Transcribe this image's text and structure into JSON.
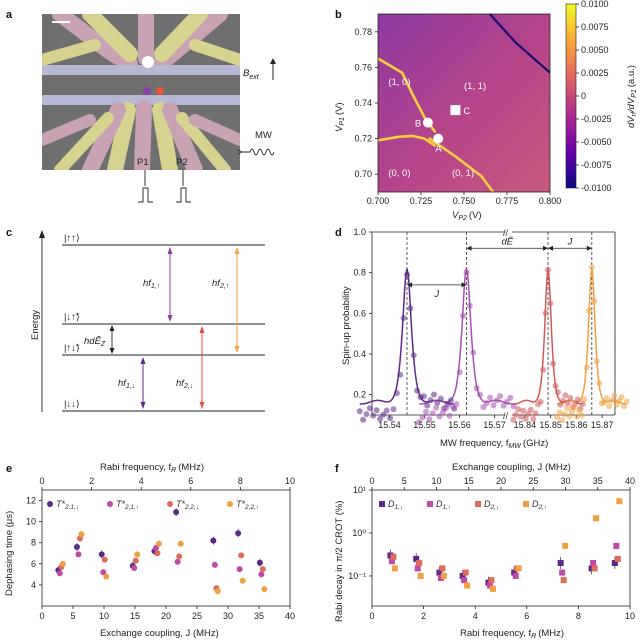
{
  "panel_labels": {
    "a": "a",
    "b": "b",
    "c": "c",
    "d": "d",
    "e": "e",
    "f": "f"
  },
  "panel_a": {
    "gate_labels": [
      "P1",
      "P2"
    ],
    "field_label": "B",
    "field_sub": "ext",
    "mw_label": "MW"
  },
  "chart_data": [
    {
      "panel": "b",
      "type": "heatmap",
      "title": "",
      "xlabel": "V",
      "xlabel_sub": "P2",
      "xunit": "(V)",
      "ylabel": "V",
      "ylabel_sub": "P1",
      "yunit": "(V)",
      "xlim": [
        0.7,
        0.8
      ],
      "ylim": [
        0.69,
        0.79
      ],
      "x_ticks": [
        "0.700",
        "0.725",
        "0.750",
        "0.775",
        "0.800"
      ],
      "y_ticks": [
        "0.70",
        "0.72",
        "0.74",
        "0.76",
        "0.78"
      ],
      "colorbar_label": "dV",
      "colorbar_label_rest": "/dV",
      "colorbar_unit": "(a.u.)",
      "colorbar_range": [
        -0.01,
        0.01
      ],
      "colorbar_ticks": [
        "0.0100",
        "0.0075",
        "0.0050",
        "0.0025",
        "0",
        "-0.0025",
        "-0.0050",
        "-0.0075",
        "-0.0100"
      ],
      "colormap": [
        "#0d0887",
        "#6a00a8",
        "#b12a90",
        "#e16462",
        "#fca636",
        "#f0f921"
      ],
      "transition_lines": [
        {
          "kind": "bright",
          "points": [
            [
              0.7,
              0.765
            ],
            [
              0.714,
              0.757
            ],
            [
              0.72,
              0.745
            ],
            [
              0.727,
              0.732
            ],
            [
              0.733,
              0.724
            ]
          ]
        },
        {
          "kind": "bright",
          "points": [
            [
              0.7,
              0.719
            ],
            [
              0.712,
              0.721
            ],
            [
              0.72,
              0.7215
            ],
            [
              0.727,
              0.72
            ],
            [
              0.733,
              0.716
            ]
          ]
        },
        {
          "kind": "bright",
          "points": [
            [
              0.73,
              0.72
            ],
            [
              0.745,
              0.71
            ],
            [
              0.76,
              0.699
            ],
            [
              0.767,
              0.69
            ]
          ]
        },
        {
          "kind": "dark",
          "points": [
            [
              0.765,
              0.79
            ],
            [
              0.78,
              0.774
            ],
            [
              0.8,
              0.757
            ]
          ]
        }
      ],
      "regions": [
        {
          "label": "(1, 0)",
          "x": 0.706,
          "y": 0.75
        },
        {
          "label": "(1, 1)",
          "x": 0.75,
          "y": 0.748
        },
        {
          "label": "(0, 0)",
          "x": 0.706,
          "y": 0.699
        },
        {
          "label": "(0, 1)",
          "x": 0.743,
          "y": 0.699
        }
      ],
      "markers": [
        {
          "label": "A",
          "x": 0.735,
          "y": 0.72,
          "shape": "circle"
        },
        {
          "label": "B",
          "x": 0.729,
          "y": 0.729,
          "shape": "circle"
        },
        {
          "label": "C",
          "x": 0.745,
          "y": 0.736,
          "shape": "square"
        }
      ]
    },
    {
      "panel": "c",
      "type": "diagram",
      "title": "",
      "ylabel": "Energy",
      "levels": [
        {
          "label": "|↑↑⟩",
          "y_level": 4
        },
        {
          "label": "|↓↑̃⟩",
          "y_level": 2.9
        },
        {
          "label": "|↑↓̃⟩",
          "y_level": 2.3
        },
        {
          "label": "|↓↓⟩",
          "y_level": 0
        }
      ],
      "transitions": [
        {
          "label": "hf",
          "sub": "1,↑",
          "color": "#8a3fa0",
          "from": 2.9,
          "to": 4
        },
        {
          "label": "hf",
          "sub": "2,↑",
          "color": "#f0a040",
          "from": 2.3,
          "to": 4
        },
        {
          "label": "hf",
          "sub": "1,↓",
          "color": "#5a2a8a",
          "from": 0,
          "to": 2.3
        },
        {
          "label": "hf",
          "sub": "2,↓",
          "color": "#e05040",
          "from": 0,
          "to": 2.9
        }
      ],
      "splitting_label": "hdẼ",
      "splitting_sub": "Z"
    },
    {
      "panel": "d",
      "type": "line",
      "title": "",
      "xlabel": "MW frequency, f",
      "xlabel_sub": "MW",
      "xunit": "(GHz)",
      "ylabel": "Spin-up probability",
      "ylim": [
        0.1,
        1.0
      ],
      "y_ticks": [
        "0.2",
        "0.4",
        "0.6",
        "0.8",
        "1.0"
      ],
      "x_ticks_left": [
        "15.54",
        "15.55",
        "15.56",
        "15.57"
      ],
      "x_ticks_right": [
        "15.84",
        "15.85",
        "15.86",
        "15.87"
      ],
      "xlim_left": [
        15.535,
        15.573
      ],
      "xlim_right": [
        15.835,
        15.875
      ],
      "axis_break": "//",
      "annotations": [
        "J",
        "dẼ",
        "J"
      ],
      "dashed_at": [
        15.545,
        15.562,
        15.849,
        15.866
      ],
      "series": [
        {
          "name": "",
          "color": "#5a2a8a",
          "center": 15.545,
          "fwhm": 0.0045,
          "peak": 0.8
        },
        {
          "name": "",
          "color": "#a64fb0",
          "center": 15.562,
          "fwhm": 0.0045,
          "peak": 0.8
        },
        {
          "name": "",
          "color": "#d05a5a",
          "center": 15.849,
          "fwhm": 0.0045,
          "peak": 0.8
        },
        {
          "name": "",
          "color": "#f0a040",
          "center": 15.866,
          "fwhm": 0.0045,
          "peak": 0.8
        }
      ],
      "baseline": 0.16
    },
    {
      "panel": "e",
      "type": "scatter",
      "title": "",
      "xlabel": "Exchange coupling, J (MHz)",
      "x2label": "Rabi frequency, f",
      "x2label_sub": "R",
      "x2unit": "(MHz)",
      "ylabel": "Dephasing time (μs)",
      "xlim": [
        0,
        40
      ],
      "x2lim": [
        0,
        10
      ],
      "ylim": [
        2,
        13
      ],
      "x_ticks": [
        "0",
        "5",
        "10",
        "15",
        "20",
        "25",
        "30",
        "35",
        "40"
      ],
      "x2_ticks": [
        "0",
        "2",
        "4",
        "6",
        "8",
        "10"
      ],
      "y_ticks": [
        "4",
        "6",
        "8",
        "10",
        "12"
      ],
      "legend_position": "top-left",
      "series": [
        {
          "name": "T*",
          "sub": "2,1,↓",
          "color": "#5a2a8a",
          "x": [
            3,
            6,
            10,
            15,
            18.5,
            22,
            28,
            32,
            35.5
          ],
          "y": [
            5.4,
            7.6,
            6.9,
            5.8,
            7.2,
            10.9,
            8.2,
            8.9,
            6.1
          ]
        },
        {
          "name": "T*",
          "sub": "2,1,↑",
          "color": "#c048a8",
          "x": [
            3,
            6,
            10,
            15,
            18.5,
            22,
            28,
            32,
            35.5
          ],
          "y": [
            5.1,
            6.9,
            5.2,
            5.6,
            7.5,
            6.2,
            5.9,
            5.5,
            5.0
          ]
        },
        {
          "name": "T*",
          "sub": "2,2,↓",
          "color": "#e06a5a",
          "x": [
            3,
            6,
            10,
            15,
            18.5,
            22,
            28,
            32,
            35.5
          ],
          "y": [
            5.7,
            8.4,
            6.4,
            6.3,
            7.0,
            6.7,
            3.7,
            6.8,
            5.5
          ]
        },
        {
          "name": "T*",
          "sub": "2,2,↑",
          "color": "#f0a040",
          "x": [
            3,
            6,
            10,
            15,
            18.5,
            22,
            28,
            32,
            35.5
          ],
          "y": [
            6.0,
            8.8,
            4.8,
            6.9,
            7.9,
            7.9,
            3.4,
            4.4,
            3.6
          ]
        }
      ]
    },
    {
      "panel": "f",
      "type": "scatter",
      "title": "",
      "xlabel": "Rabi frequency, f",
      "xlabel_sub": "R",
      "xunit": "(MHz)",
      "x2label": "Exchange coupling, J (MHz)",
      "ylabel": "Rabi decay in π/2 CROT (%)",
      "ylog": true,
      "ylim": [
        0.02,
        10
      ],
      "xlim": [
        0,
        10
      ],
      "x2lim": [
        0,
        40
      ],
      "x_ticks": [
        "0",
        "2",
        "4",
        "6",
        "8",
        "10"
      ],
      "x2_ticks": [
        "0",
        "5",
        "10",
        "15",
        "20",
        "25",
        "30",
        "35",
        "40"
      ],
      "y_ticks": [
        "10⁻¹",
        "10⁰",
        "10¹"
      ],
      "legend_position": "top",
      "series": [
        {
          "name": "D",
          "sub": "1,↓",
          "color": "#5a2a8a",
          "x": [
            0.8,
            1.8,
            2.7,
            3.6,
            4.6,
            5.6,
            7.4,
            8.6,
            9.5
          ],
          "y": [
            0.3,
            0.25,
            0.12,
            0.1,
            0.07,
            0.12,
            0.2,
            0.15,
            0.2
          ]
        },
        {
          "name": "D",
          "sub": "1,↑",
          "color": "#c048a8",
          "x": [
            0.8,
            1.8,
            2.7,
            3.6,
            4.6,
            5.6,
            7.4,
            8.6,
            9.5
          ],
          "y": [
            0.22,
            0.15,
            0.09,
            0.08,
            0.06,
            0.1,
            0.12,
            0.2,
            0.5
          ]
        },
        {
          "name": "D",
          "sub": "2,↓",
          "color": "#e06a5a",
          "x": [
            0.8,
            1.8,
            2.7,
            3.6,
            4.6,
            5.6,
            7.4,
            8.6,
            9.5
          ],
          "y": [
            0.28,
            0.2,
            0.15,
            0.12,
            0.08,
            0.15,
            0.08,
            0.15,
            0.25
          ]
        },
        {
          "name": "D",
          "sub": "2,↑",
          "color": "#f0a040",
          "x": [
            0.8,
            1.8,
            2.7,
            3.6,
            4.6,
            5.6,
            7.4,
            8.6,
            9.5
          ],
          "y": [
            0.15,
            0.1,
            0.1,
            0.06,
            0.05,
            0.15,
            0.5,
            2.2,
            5.5
          ]
        }
      ]
    }
  ]
}
